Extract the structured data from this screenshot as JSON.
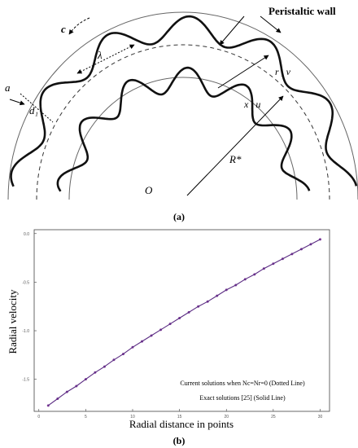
{
  "figure": {
    "captions": [
      "(a)",
      "(b)"
    ]
  },
  "diagram": {
    "labels": [
      "Peristaltic wall",
      "c",
      "λ",
      "a",
      "d₁",
      "r , v",
      "x , u",
      "R*",
      "O"
    ]
  },
  "chart_data": {
    "type": "scatter-line",
    "x_label": "Radial distance in points",
    "y_label": "Radial velocity",
    "x": [
      1,
      2,
      3,
      4,
      5,
      6,
      7,
      8,
      9,
      10,
      11,
      12,
      13,
      14,
      15,
      16,
      17,
      18,
      19,
      20,
      21,
      22,
      23,
      24,
      25,
      26,
      27,
      28,
      29,
      30
    ],
    "series": [
      {
        "name": "Current solutions when Nc=Nr=0 (Dotted Line)",
        "color": "#7d3c98",
        "style": "dotted",
        "values": [
          -1.77,
          -1.7,
          -1.63,
          -1.57,
          -1.5,
          -1.43,
          -1.37,
          -1.3,
          -1.24,
          -1.17,
          -1.11,
          -1.05,
          -0.99,
          -0.93,
          -0.87,
          -0.81,
          -0.75,
          -0.7,
          -0.64,
          -0.58,
          -0.53,
          -0.47,
          -0.42,
          -0.36,
          -0.31,
          -0.26,
          -0.21,
          -0.16,
          -0.11,
          -0.06
        ]
      },
      {
        "name": "Exact solutions [25] (Solid Line)",
        "color": "#5b2c83",
        "style": "solid",
        "values": [
          -1.77,
          -1.7,
          -1.63,
          -1.57,
          -1.5,
          -1.43,
          -1.37,
          -1.3,
          -1.24,
          -1.17,
          -1.11,
          -1.05,
          -0.99,
          -0.93,
          -0.87,
          -0.81,
          -0.75,
          -0.7,
          -0.64,
          -0.58,
          -0.53,
          -0.47,
          -0.42,
          -0.36,
          -0.31,
          -0.26,
          -0.21,
          -0.16,
          -0.11,
          -0.06
        ]
      }
    ],
    "xlim": [
      -0.5,
      31
    ],
    "ylim": [
      -1.83,
      0.04
    ],
    "xticks": [
      0,
      5,
      10,
      15,
      20,
      25,
      30
    ],
    "yticks": [
      {
        "value": 0,
        "label": "0.0"
      },
      -0.5,
      {
        "value": -1,
        "label": "-1.0"
      },
      -1.5
    ]
  }
}
